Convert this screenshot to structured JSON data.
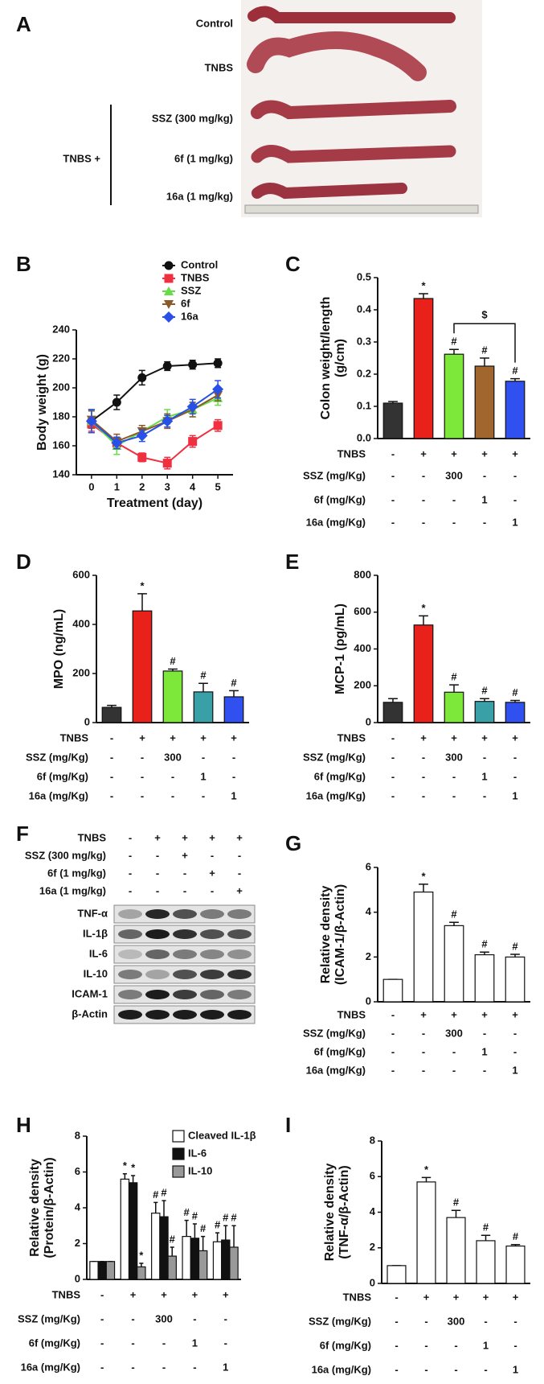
{
  "panel_a": {
    "letter": "A",
    "labels": [
      "Control",
      "TNBS",
      "SSZ (300 mg/kg)",
      "6f (1 mg/kg)",
      "16a (1 mg/kg)"
    ],
    "group_label": "TNBS +"
  },
  "panel_f": {
    "letter": "F",
    "treatments": [
      {
        "label": "TNBS",
        "cells": [
          "-",
          "+",
          "+",
          "+",
          "+"
        ]
      },
      {
        "label": "SSZ (300 mg/kg)",
        "cells": [
          "-",
          "-",
          "+",
          "-",
          "-"
        ]
      },
      {
        "label": "6f (1 mg/kg)",
        "cells": [
          "-",
          "-",
          "-",
          "+",
          "-"
        ]
      },
      {
        "label": "16a (1 mg/kg)",
        "cells": [
          "-",
          "-",
          "-",
          "-",
          "+"
        ]
      }
    ],
    "bands": [
      "TNF-α",
      "IL-1β",
      "IL-6",
      "IL-10",
      "ICAM-1",
      "β-Actin"
    ]
  },
  "chart_data": [
    {
      "type": "line",
      "panel": "B",
      "ylabel": [
        "Body weight (g)"
      ],
      "xlabel": "Treatment (day)",
      "x": [
        0,
        1,
        2,
        3,
        4,
        5
      ],
      "xlim": [
        -0.6,
        5.6
      ],
      "xticks": [
        0,
        1,
        2,
        3,
        4,
        5
      ],
      "ylim": [
        140,
        240
      ],
      "yticks": [
        140,
        160,
        180,
        200,
        220,
        240
      ],
      "legend": "top",
      "series": [
        {
          "name": "Control",
          "color": "#111111",
          "marker": "circle",
          "values": [
            177,
            190,
            207,
            215,
            216,
            217
          ],
          "errors": [
            8,
            5,
            5,
            3,
            3,
            3
          ]
        },
        {
          "name": "TNBS",
          "color": "#f03040",
          "marker": "square",
          "values": [
            175,
            162,
            152,
            148,
            163,
            174
          ],
          "errors": [
            5,
            4,
            3,
            4,
            4,
            4
          ]
        },
        {
          "name": "SSZ",
          "color": "#66dd44",
          "marker": "triangle",
          "values": [
            177,
            160,
            170,
            180,
            185,
            193
          ],
          "errors": [
            8,
            6,
            4,
            5,
            5,
            5
          ]
        },
        {
          "name": "6f",
          "color": "#8a5a2a",
          "marker": "triangle-down",
          "values": [
            178,
            163,
            170,
            177,
            185,
            195
          ],
          "errors": [
            6,
            5,
            4,
            5,
            5,
            4
          ]
        },
        {
          "name": "16a",
          "color": "#2850e8",
          "marker": "diamond",
          "values": [
            177,
            162,
            167,
            177,
            187,
            199
          ],
          "errors": [
            8,
            4,
            4,
            4,
            5,
            6
          ]
        }
      ]
    },
    {
      "type": "bar",
      "panel": "C",
      "ylabel": [
        "Colon weight/length",
        "(g/cm)"
      ],
      "ylim": [
        0,
        0.5
      ],
      "yticks": [
        {
          "value": 0,
          "label": "0.0"
        },
        0.1,
        0.2,
        0.3,
        0.4,
        0.5
      ],
      "series": [
        {
          "colors": [
            "#333333",
            "#e8211b",
            "#7ee83a",
            "#a0662e",
            "#3050f0"
          ],
          "values": [
            0.11,
            0.435,
            0.262,
            0.225,
            0.178
          ],
          "errors": [
            0.005,
            0.015,
            0.015,
            0.025,
            0.008
          ],
          "annotations": [
            null,
            "*",
            "#",
            "#",
            "#"
          ]
        }
      ],
      "comparisons": [
        {
          "label": "$",
          "bars": [
            2,
            4
          ]
        }
      ],
      "treatments": [
        {
          "label": "TNBS",
          "cells": [
            "-",
            "+",
            "+",
            "+",
            "+"
          ]
        },
        {
          "label": "SSZ (mg/Kg)",
          "cells": [
            "-",
            "-",
            "300",
            "-",
            "-"
          ]
        },
        {
          "label": "6f (mg/Kg)",
          "cells": [
            "-",
            "-",
            "-",
            "1",
            "-"
          ]
        },
        {
          "label": "16a (mg/Kg)",
          "cells": [
            "-",
            "-",
            "-",
            "-",
            "1"
          ]
        }
      ]
    },
    {
      "type": "bar",
      "panel": "D",
      "ylabel": [
        "MPO (ng/mL)"
      ],
      "ylim": [
        0,
        600
      ],
      "yticks": [
        0,
        200,
        400,
        600
      ],
      "series": [
        {
          "colors": [
            "#333333",
            "#e8211b",
            "#7ee83a",
            "#3aa0a8",
            "#3050f0"
          ],
          "values": [
            62,
            455,
            210,
            125,
            105
          ],
          "errors": [
            8,
            70,
            8,
            35,
            25
          ],
          "annotations": [
            null,
            "*",
            "#",
            "#",
            "#"
          ]
        }
      ],
      "treatments": [
        {
          "label": "TNBS",
          "cells": [
            "-",
            "+",
            "+",
            "+",
            "+"
          ]
        },
        {
          "label": "SSZ (mg/Kg)",
          "cells": [
            "-",
            "-",
            "300",
            "-",
            "-"
          ]
        },
        {
          "label": "6f (mg/Kg)",
          "cells": [
            "-",
            "-",
            "-",
            "1",
            "-"
          ]
        },
        {
          "label": "16a (mg/Kg)",
          "cells": [
            "-",
            "-",
            "-",
            "-",
            "1"
          ]
        }
      ]
    },
    {
      "type": "bar",
      "panel": "E",
      "ylabel": [
        "MCP-1 (pg/mL)"
      ],
      "ylim": [
        0,
        800
      ],
      "yticks": [
        0,
        200,
        400,
        600,
        800
      ],
      "series": [
        {
          "colors": [
            "#333333",
            "#e8211b",
            "#7ee83a",
            "#3aa0a8",
            "#3050f0"
          ],
          "values": [
            110,
            530,
            165,
            115,
            110
          ],
          "errors": [
            20,
            50,
            40,
            15,
            10
          ],
          "annotations": [
            null,
            "*",
            "#",
            "#",
            "#"
          ]
        }
      ],
      "treatments": [
        {
          "label": "TNBS",
          "cells": [
            "-",
            "+",
            "+",
            "+",
            "+"
          ]
        },
        {
          "label": "SSZ (mg/Kg)",
          "cells": [
            "-",
            "-",
            "300",
            "-",
            "-"
          ]
        },
        {
          "label": "6f (mg/Kg)",
          "cells": [
            "-",
            "-",
            "-",
            "1",
            "-"
          ]
        },
        {
          "label": "16a (mg/Kg)",
          "cells": [
            "-",
            "-",
            "-",
            "-",
            "1"
          ]
        }
      ]
    },
    {
      "type": "bar",
      "panel": "G",
      "ylabel": [
        "Relative density",
        "(ICAM-1/β-Actin)"
      ],
      "ylim": [
        0,
        6
      ],
      "yticks": [
        0,
        2,
        4,
        6
      ],
      "series": [
        {
          "color": "#ffffff",
          "values": [
            1,
            4.9,
            3.4,
            2.1,
            2.0
          ],
          "errors": [
            0,
            0.35,
            0.15,
            0.12,
            0.12
          ],
          "annotations": [
            null,
            "*",
            "#",
            "#",
            "#"
          ]
        }
      ],
      "treatments": [
        {
          "label": "TNBS",
          "cells": [
            "-",
            "+",
            "+",
            "+",
            "+"
          ]
        },
        {
          "label": "SSZ (mg/Kg)",
          "cells": [
            "-",
            "-",
            "300",
            "-",
            "-"
          ]
        },
        {
          "label": "6f (mg/Kg)",
          "cells": [
            "-",
            "-",
            "-",
            "1",
            "-"
          ]
        },
        {
          "label": "16a (mg/Kg)",
          "cells": [
            "-",
            "-",
            "-",
            "-",
            "1"
          ]
        }
      ]
    },
    {
      "type": "bar",
      "panel": "H",
      "ylabel": [
        "Relative density",
        "(Protein/β-Actin)"
      ],
      "ylim": [
        0,
        8
      ],
      "yticks": [
        0,
        2,
        4,
        6,
        8
      ],
      "legend": "upper right",
      "series": [
        {
          "name": "Cleaved IL-1β",
          "color": "#ffffff",
          "values": [
            1,
            5.6,
            3.7,
            2.4,
            2.1
          ],
          "errors": [
            0,
            0.3,
            0.6,
            0.9,
            0.5
          ],
          "annotations": [
            null,
            "*",
            "#",
            "#",
            "#"
          ]
        },
        {
          "name": "IL-6",
          "color": "#111111",
          "values": [
            1,
            5.4,
            3.5,
            2.3,
            2.2
          ],
          "errors": [
            0,
            0.4,
            0.9,
            0.8,
            0.8
          ],
          "annotations": [
            null,
            "*",
            "#",
            "#",
            "#"
          ]
        },
        {
          "name": "IL-10",
          "color": "#999999",
          "values": [
            1,
            0.7,
            1.3,
            1.6,
            1.8
          ],
          "errors": [
            0,
            0.2,
            0.5,
            0.8,
            1.2
          ],
          "annotations": [
            null,
            "*",
            "#",
            "#",
            "#"
          ]
        }
      ],
      "treatments": [
        {
          "label": "TNBS",
          "cells": [
            "-",
            "+",
            "+",
            "+",
            "+"
          ]
        },
        {
          "label": "SSZ (mg/Kg)",
          "cells": [
            "-",
            "-",
            "300",
            "-",
            "-"
          ]
        },
        {
          "label": "6f (mg/Kg)",
          "cells": [
            "-",
            "-",
            "-",
            "1",
            "-"
          ]
        },
        {
          "label": "16a (mg/Kg)",
          "cells": [
            "-",
            "-",
            "-",
            "-",
            "1"
          ]
        }
      ]
    },
    {
      "type": "bar",
      "panel": "I",
      "ylabel": [
        "Relative density",
        "(TNF-α/β-Actin)"
      ],
      "ylim": [
        0,
        8
      ],
      "yticks": [
        0,
        2,
        4,
        6,
        8
      ],
      "series": [
        {
          "color": "#ffffff",
          "values": [
            1,
            5.7,
            3.7,
            2.4,
            2.1
          ],
          "errors": [
            0,
            0.25,
            0.4,
            0.3,
            0.08
          ],
          "annotations": [
            null,
            "*",
            "#",
            "#",
            "#"
          ]
        }
      ],
      "treatments": [
        {
          "label": "TNBS",
          "cells": [
            "-",
            "+",
            "+",
            "+",
            "+"
          ]
        },
        {
          "label": "SSZ (mg/Kg)",
          "cells": [
            "-",
            "-",
            "300",
            "-",
            "-"
          ]
        },
        {
          "label": "6f (mg/Kg)",
          "cells": [
            "-",
            "-",
            "-",
            "1",
            "-"
          ]
        },
        {
          "label": "16a (mg/Kg)",
          "cells": [
            "-",
            "-",
            "-",
            "-",
            "1"
          ]
        }
      ]
    }
  ]
}
